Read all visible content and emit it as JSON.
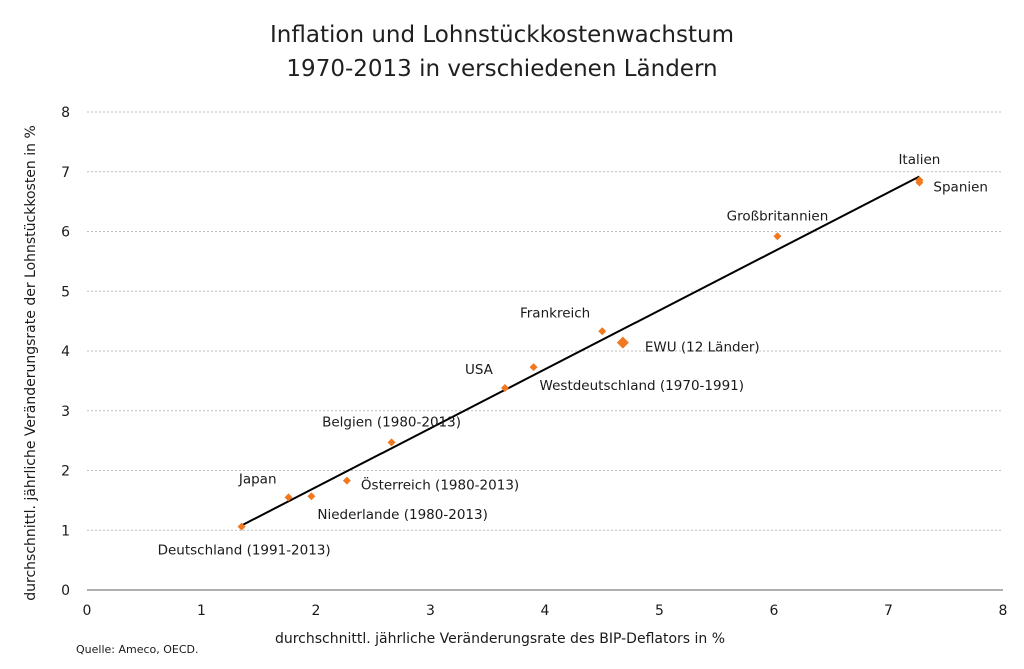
{
  "title_line1": "Inflation und Lohnstückkostenwachstum",
  "title_line2": "1970-2013 in verschiedenen Ländern",
  "source": "Quelle: Ameco, OECD.",
  "colors": {
    "marker": "#f07820",
    "trend": "#000000",
    "grid": "#bfbfbf"
  },
  "chart_data": {
    "type": "scatter",
    "title": "Inflation und Lohnstückkostenwachstum 1970-2013 in verschiedenen Ländern",
    "xlabel": "durchschnittl. jährliche Veränderungsrate des BIP-Deflators in %",
    "ylabel": "durchschnittl. jährliche Veränderungsrate der Lohnstückkosten in %",
    "xlim": [
      0,
      8
    ],
    "ylim": [
      0,
      8
    ],
    "xticks": [
      "0",
      "1",
      "2",
      "3",
      "4",
      "5",
      "6",
      "7",
      "8"
    ],
    "yticks": [
      "0",
      "1",
      "2",
      "3",
      "4",
      "5",
      "6",
      "7",
      "8"
    ],
    "grid": "horizontal dashed",
    "points": [
      {
        "label": "Deutschland (1991-2013)",
        "x": 1.35,
        "y": 1.06,
        "label_pos": "below-left"
      },
      {
        "label": "Japan",
        "x": 1.76,
        "y": 1.55,
        "label_pos": "above-left"
      },
      {
        "label": "Niederlande (1980-2013)",
        "x": 1.96,
        "y": 1.57,
        "label_pos": "below-right"
      },
      {
        "label": "Österreich (1980-2013)",
        "x": 2.27,
        "y": 1.83,
        "label_pos": "right"
      },
      {
        "label": "Belgien (1980-2013)",
        "x": 2.66,
        "y": 2.47,
        "label_pos": "above"
      },
      {
        "label": "USA",
        "x": 3.65,
        "y": 3.38,
        "label_pos": "above-left"
      },
      {
        "label": "Westdeutschland (1970-1991)",
        "x": 3.9,
        "y": 3.73,
        "label_pos": "below-right"
      },
      {
        "label": "Frankreich",
        "x": 4.5,
        "y": 4.33,
        "label_pos": "above-left"
      },
      {
        "label": "EWU (12 Länder)",
        "x": 4.68,
        "y": 4.14,
        "label_pos": "right",
        "emphasis": true
      },
      {
        "label": "Großbritannien",
        "x": 6.03,
        "y": 5.92,
        "label_pos": "above"
      },
      {
        "label": "Italien",
        "x": 7.27,
        "y": 6.86,
        "label_pos": "above"
      },
      {
        "label": "Spanien",
        "x": 7.27,
        "y": 6.82,
        "label_pos": "right"
      }
    ],
    "trendline": {
      "x": [
        1.35,
        7.27
      ],
      "y": [
        1.08,
        6.92
      ]
    }
  }
}
